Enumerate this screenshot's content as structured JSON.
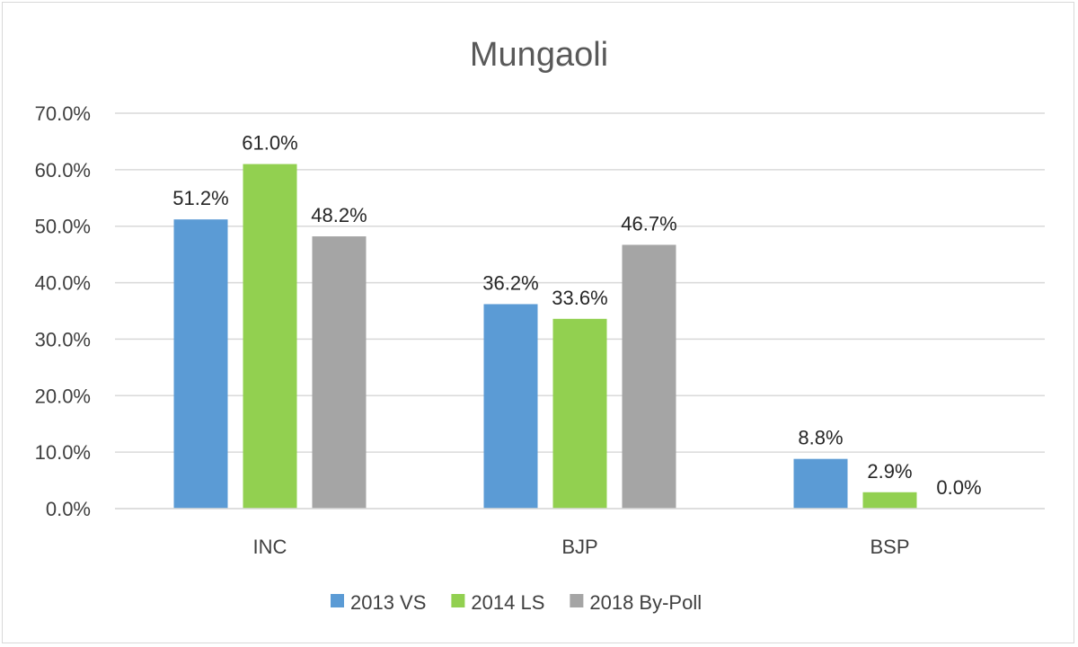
{
  "chart_data": {
    "type": "bar",
    "title": "Mungaoli",
    "categories": [
      "INC",
      "BJP",
      "BSP"
    ],
    "series": [
      {
        "name": "2013 VS",
        "color": "#5b9bd5",
        "values": [
          51.2,
          36.2,
          8.8
        ]
      },
      {
        "name": "2014 LS",
        "color": "#92d050",
        "values": [
          61.0,
          33.6,
          2.9
        ]
      },
      {
        "name": "2018 By-Poll",
        "color": "#a5a5a5",
        "values": [
          48.2,
          46.7,
          0.0
        ]
      }
    ],
    "ylim": [
      0,
      70
    ],
    "yticks": [
      0,
      10,
      20,
      30,
      40,
      50,
      60,
      70
    ],
    "ytick_labels": [
      "0.0%",
      "10.0%",
      "20.0%",
      "30.0%",
      "40.0%",
      "50.0%",
      "60.0%",
      "70.0%"
    ],
    "data_labels": [
      [
        "51.2%",
        "36.2%",
        "8.8%"
      ],
      [
        "61.0%",
        "33.6%",
        "2.9%"
      ],
      [
        "48.2%",
        "46.7%",
        "0.0%"
      ]
    ],
    "xlabel": "",
    "ylabel": "",
    "grid": true,
    "legend_position": "bottom"
  }
}
